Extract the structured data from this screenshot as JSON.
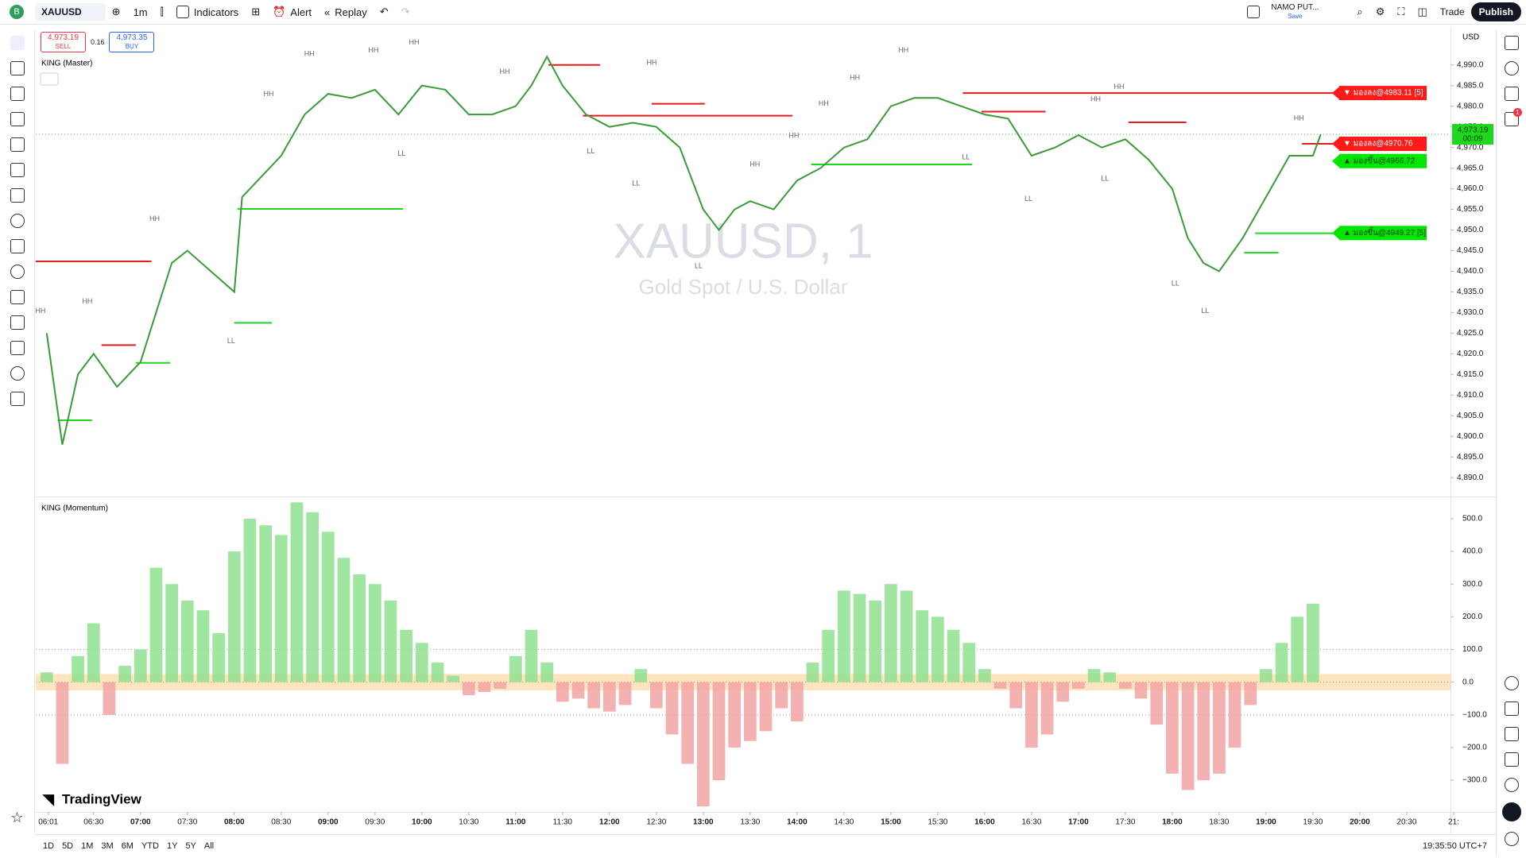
{
  "toolbar": {
    "symbol": "XAUUSD",
    "interval": "1m",
    "indicators": "Indicators",
    "alert": "Alert",
    "replay": "Replay",
    "layout_name": "NAMO PUT...",
    "save": "Save",
    "trade": "Trade",
    "publish": "Publish"
  },
  "order_panel": {
    "sell_price": "4,973.19",
    "sell": "SELL",
    "spread": "0.16",
    "buy_price": "4,973.35",
    "buy": "BUY"
  },
  "watermark": {
    "symbol": "XAUUSD, 1",
    "description": "Gold Spot / U.S. Dollar"
  },
  "currency": "USD",
  "notification_count": "1",
  "logo": "TradingView",
  "timeframes": [
    "1D",
    "5D",
    "1M",
    "3M",
    "6M",
    "YTD",
    "1Y",
    "5Y",
    "All"
  ],
  "clock": "19:35:50 UTC+7",
  "chart_data": [
    {
      "type": "line",
      "title": "KING (Master)",
      "color": "#3a9a3a",
      "x": [
        "06:00",
        "06:10",
        "06:20",
        "06:30",
        "06:45",
        "07:00",
        "07:10",
        "07:20",
        "07:30",
        "07:45",
        "08:00",
        "08:05",
        "08:15",
        "08:30",
        "08:45",
        "09:00",
        "09:15",
        "09:30",
        "09:45",
        "10:00",
        "10:15",
        "10:30",
        "10:45",
        "11:00",
        "11:10",
        "11:20",
        "11:30",
        "11:45",
        "12:00",
        "12:15",
        "12:30",
        "12:45",
        "13:00",
        "13:10",
        "13:20",
        "13:30",
        "13:45",
        "14:00",
        "14:15",
        "14:30",
        "14:45",
        "15:00",
        "15:15",
        "15:30",
        "15:45",
        "16:00",
        "16:15",
        "16:30",
        "16:45",
        "17:00",
        "17:15",
        "17:30",
        "17:45",
        "18:00",
        "18:10",
        "18:20",
        "18:30",
        "18:45",
        "19:00",
        "19:15",
        "19:30",
        "19:35"
      ],
      "values": [
        4925,
        4898,
        4915,
        4920,
        4912,
        4918,
        4930,
        4942,
        4945,
        4940,
        4935,
        4958,
        4962,
        4968,
        4978,
        4983,
        4982,
        4984,
        4978,
        4985,
        4984,
        4978,
        4978,
        4980,
        4985,
        4992,
        4985,
        4978,
        4975,
        4976,
        4975,
        4970,
        4955,
        4950,
        4955,
        4957,
        4955,
        4962,
        4965,
        4970,
        4972,
        4980,
        4982,
        4982,
        4980,
        4978,
        4977,
        4968,
        4970,
        4973,
        4970,
        4972,
        4967,
        4960,
        4948,
        4942,
        4940,
        4948,
        4958,
        4968,
        4968,
        4973.19
      ],
      "xlim": [
        "05:53",
        "20:58"
      ],
      "xticks": [
        "06:01",
        "06:30",
        "07:00",
        "07:30",
        "08:00",
        "08:30",
        "09:00",
        "09:30",
        "10:00",
        "10:30",
        "11:00",
        "11:30",
        "12:00",
        "12:30",
        "13:00",
        "13:30",
        "14:00",
        "14:30",
        "15:00",
        "15:30",
        "16:00",
        "16:30",
        "17:00",
        "17:30",
        "18:00",
        "18:30",
        "19:00",
        "19:30",
        "20:00",
        "20:30",
        {
          "value": "21:00",
          "label": "21:"
        }
      ],
      "ylim": [
        4885.6,
        4999.2
      ],
      "yticks": [
        {
          "value": 4890,
          "label": "4,890.0"
        },
        {
          "value": 4895,
          "label": "4,895.0"
        },
        {
          "value": 4900,
          "label": "4,900.0"
        },
        {
          "value": 4905,
          "label": "4,905.0"
        },
        {
          "value": 4910,
          "label": "4,910.0"
        },
        {
          "value": 4915,
          "label": "4,915.0"
        },
        {
          "value": 4920,
          "label": "4,920.0"
        },
        {
          "value": 4925,
          "label": "4,925.0"
        },
        {
          "value": 4930,
          "label": "4,930.0"
        },
        {
          "value": 4935,
          "label": "4,935.0"
        },
        {
          "value": 4940,
          "label": "4,940.0"
        },
        {
          "value": 4945,
          "label": "4,945.0"
        },
        {
          "value": 4950,
          "label": "4,950.0"
        },
        {
          "value": 4955,
          "label": "4,955.0"
        },
        {
          "value": 4960,
          "label": "4,960.0"
        },
        {
          "value": 4965,
          "label": "4,965.0"
        },
        {
          "value": 4970,
          "label": "4,970.0"
        },
        {
          "value": 4975,
          "label": "4,975.0"
        },
        {
          "value": 4980,
          "label": "4,980.0"
        },
        {
          "value": 4985,
          "label": "4,985.0"
        },
        {
          "value": 4990,
          "label": "4,990.0"
        }
      ],
      "annotations": [
        {
          "text": "HH",
          "x": "05:56",
          "y": 4930.3
        },
        {
          "text": "HH",
          "x": "06:26",
          "y": 4932.7
        },
        {
          "text": "HH",
          "x": "07:09",
          "y": 4952.7
        },
        {
          "text": "HH",
          "x": "08:22",
          "y": 4982.9
        },
        {
          "text": "HH",
          "x": "08:48",
          "y": 4992.6
        },
        {
          "text": "HH",
          "x": "09:29",
          "y": 4993.5
        },
        {
          "text": "HH",
          "x": "09:55",
          "y": 4995.4
        },
        {
          "text": "HH",
          "x": "10:53",
          "y": 4988.3
        },
        {
          "text": "HH",
          "x": "12:27",
          "y": 4990.5
        },
        {
          "text": "HH",
          "x": "13:33",
          "y": 4965.9
        },
        {
          "text": "HH",
          "x": "13:58",
          "y": 4972.8
        },
        {
          "text": "HH",
          "x": "14:17",
          "y": 4980.6
        },
        {
          "text": "HH",
          "x": "14:37",
          "y": 4986.9
        },
        {
          "text": "HH",
          "x": "15:08",
          "y": 4993.5
        },
        {
          "text": "HH",
          "x": "17:11",
          "y": 4981.7
        },
        {
          "text": "HH",
          "x": "17:26",
          "y": 4984.6
        },
        {
          "text": "HH",
          "x": "19:21",
          "y": 4977.0
        },
        {
          "text": "LL",
          "x": "07:58",
          "y": 4923.0
        },
        {
          "text": "LL",
          "x": "09:47",
          "y": 4968.5
        },
        {
          "text": "LL",
          "x": "11:48",
          "y": 4969.0
        },
        {
          "text": "LL",
          "x": "12:17",
          "y": 4961.2
        },
        {
          "text": "LL",
          "x": "12:57",
          "y": 4941.2
        },
        {
          "text": "LL",
          "x": "15:48",
          "y": 4967.6
        },
        {
          "text": "LL",
          "x": "16:28",
          "y": 4957.5
        },
        {
          "text": "LL",
          "x": "17:17",
          "y": 4962.4
        },
        {
          "text": "LL",
          "x": "18:02",
          "y": 4937.0
        },
        {
          "text": "LL",
          "x": "18:21",
          "y": 4930.3
        }
      ],
      "levels": [
        {
          "y": 4942.4,
          "from": "05:53",
          "to": "07:07",
          "color": "#e31b1b"
        },
        {
          "y": 4903.9,
          "from": "06:07",
          "to": "06:29",
          "color": "#1ed81e"
        },
        {
          "y": 4922.1,
          "from": "06:35",
          "to": "06:57",
          "color": "#e31b1b"
        },
        {
          "y": 4917.8,
          "from": "06:57",
          "to": "07:19",
          "color": "#1ed81e"
        },
        {
          "y": 4955.1,
          "from": "08:02",
          "to": "09:48",
          "color": "#1ed81e"
        },
        {
          "y": 4927.5,
          "from": "08:00",
          "to": "08:24",
          "color": "#1ed81e"
        },
        {
          "y": 4990.0,
          "from": "11:21",
          "to": "11:54",
          "color": "#e31b1b"
        },
        {
          "y": 4980.6,
          "from": "12:27",
          "to": "13:01",
          "color": "#e31b1b"
        },
        {
          "y": 4977.7,
          "from": "11:43",
          "to": "13:57",
          "color": "#e31b1b"
        },
        {
          "y": 4965.9,
          "from": "14:09",
          "to": "15:52",
          "color": "#1ed81e"
        },
        {
          "y": 4983.2,
          "from": "15:46",
          "to": "19:43",
          "color": "#e31b1b"
        },
        {
          "y": 4978.7,
          "from": "15:58",
          "to": "16:39",
          "color": "#e31b1b"
        },
        {
          "y": 4976.1,
          "from": "17:32",
          "to": "18:09",
          "color": "#e31b1b"
        },
        {
          "y": 4970.9,
          "from": "19:23",
          "to": "19:43",
          "color": "#e31b1b"
        },
        {
          "y": 4949.2,
          "from": "18:53",
          "to": "19:43",
          "color": "#1ed81e"
        },
        {
          "y": 4944.5,
          "from": "18:46",
          "to": "19:08",
          "color": "#1ed81e"
        }
      ],
      "signals": [
        {
          "text": "▼ มองลง@4983.11 [5]",
          "y": 4983.2,
          "color": "#ff1a1a"
        },
        {
          "text": "▼ มองลง@4970.76",
          "y": 4970.9,
          "color": "#ff1a1a"
        },
        {
          "text": "▲ มองขึ้น@4966.72",
          "y": 4966.72,
          "color": "#00e600"
        },
        {
          "text": "▲ มองขึ้น@4949.27 [5]",
          "y": 4949.27,
          "color": "#00e600"
        }
      ],
      "last_price": {
        "value": 4973.19,
        "label": "4,973.19",
        "countdown": "00:09",
        "color": "#1ed81e"
      }
    },
    {
      "type": "bar",
      "title": "KING (Momentum)",
      "x": [
        "06:00",
        "06:10",
        "06:20",
        "06:30",
        "06:40",
        "06:50",
        "07:00",
        "07:10",
        "07:20",
        "07:30",
        "07:40",
        "07:50",
        "08:00",
        "08:10",
        "08:20",
        "08:30",
        "08:40",
        "08:50",
        "09:00",
        "09:10",
        "09:20",
        "09:30",
        "09:40",
        "09:50",
        "10:00",
        "10:10",
        "10:20",
        "10:30",
        "10:40",
        "10:50",
        "11:00",
        "11:10",
        "11:20",
        "11:30",
        "11:40",
        "11:50",
        "12:00",
        "12:10",
        "12:20",
        "12:30",
        "12:40",
        "12:50",
        "13:00",
        "13:10",
        "13:20",
        "13:30",
        "13:40",
        "13:50",
        "14:00",
        "14:10",
        "14:20",
        "14:30",
        "14:40",
        "14:50",
        "15:00",
        "15:10",
        "15:20",
        "15:30",
        "15:40",
        "15:50",
        "16:00",
        "16:10",
        "16:20",
        "16:30",
        "16:40",
        "16:50",
        "17:00",
        "17:10",
        "17:20",
        "17:30",
        "17:40",
        "17:50",
        "18:00",
        "18:10",
        "18:20",
        "18:30",
        "18:40",
        "18:50",
        "19:00",
        "19:10",
        "19:20",
        "19:30"
      ],
      "values": [
        30,
        -250,
        80,
        180,
        -100,
        50,
        100,
        350,
        300,
        250,
        220,
        150,
        400,
        500,
        480,
        450,
        550,
        520,
        460,
        380,
        330,
        300,
        250,
        160,
        120,
        60,
        20,
        -40,
        -30,
        -20,
        80,
        160,
        60,
        -60,
        -50,
        -80,
        -90,
        -70,
        40,
        -80,
        -160,
        -250,
        -380,
        -300,
        -200,
        -180,
        -150,
        -80,
        -120,
        60,
        160,
        280,
        270,
        250,
        300,
        280,
        220,
        200,
        160,
        120,
        40,
        -20,
        -80,
        -200,
        -160,
        -60,
        -20,
        40,
        30,
        -20,
        -50,
        -130,
        -280,
        -330,
        -300,
        -280,
        -200,
        -70,
        40,
        120,
        200,
        240
      ],
      "colors": {
        "positive": "#8fe08f",
        "negative": "#f2a3a3"
      },
      "ylim": [
        -397,
        563
      ],
      "yticks": [
        {
          "value": 500,
          "label": "500.0"
        },
        {
          "value": 400,
          "label": "400.0"
        },
        {
          "value": 300,
          "label": "300.0"
        },
        {
          "value": 200,
          "label": "200.0"
        },
        {
          "value": 100,
          "label": "100.0"
        },
        {
          "value": 0,
          "label": "0.0"
        },
        {
          "value": -100,
          "label": "−100.0"
        },
        {
          "value": -200,
          "label": "−200.0"
        },
        {
          "value": -300,
          "label": "−300.0"
        }
      ],
      "neutral_band": [
        -25,
        25
      ],
      "band_color": "#ffcc80",
      "dotted_levels": [
        100,
        0,
        -100
      ]
    }
  ]
}
